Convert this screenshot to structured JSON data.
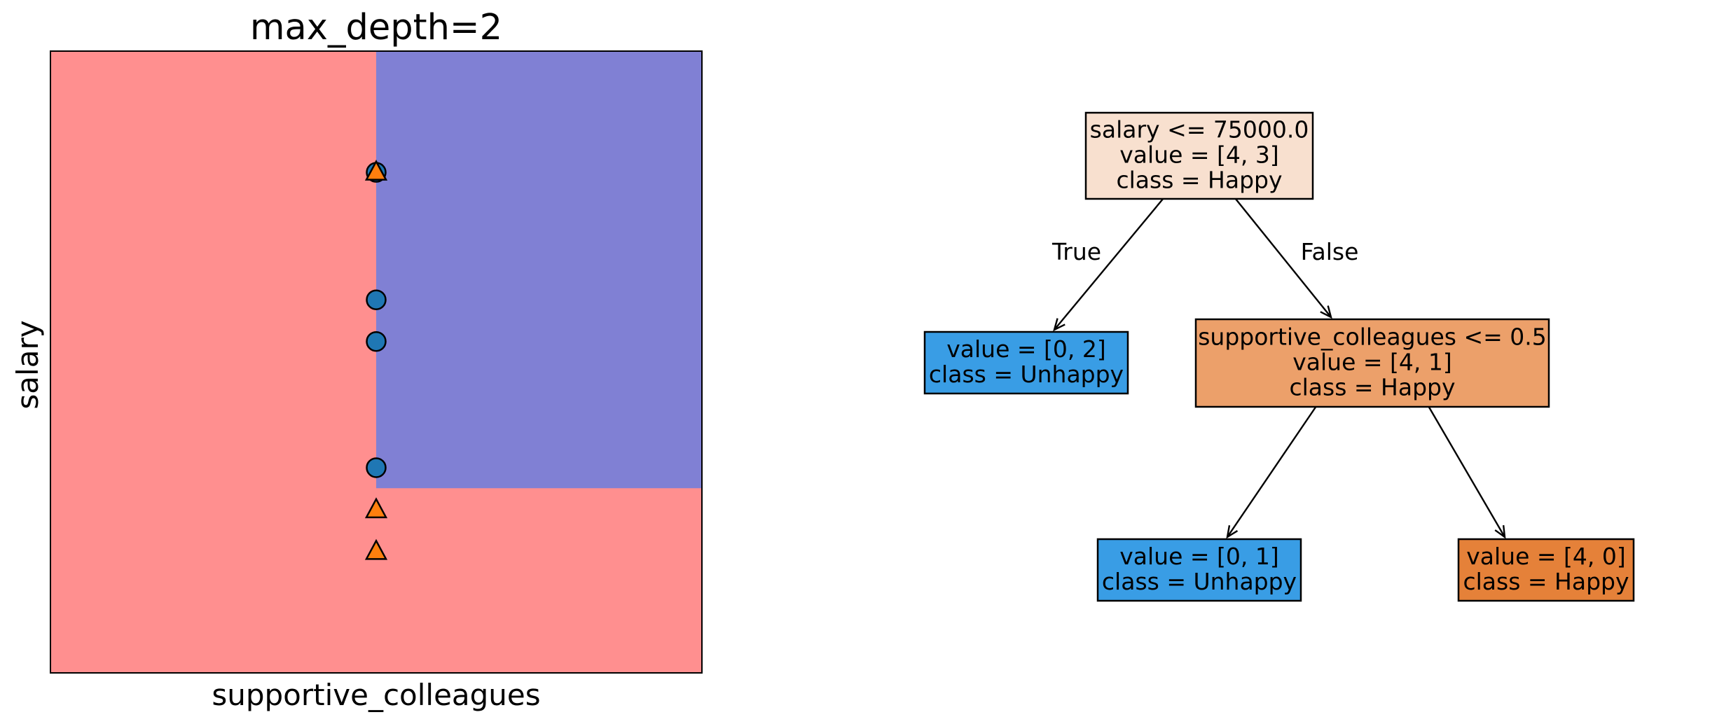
{
  "chart_data": [
    {
      "type": "scatter",
      "title": "max_depth=2",
      "xlabel": "supportive_colleagues",
      "ylabel": "salary",
      "grid": false,
      "xticks": "none",
      "yticks": "none",
      "xlim": [
        0,
        1
      ],
      "ylim": [
        0,
        1
      ],
      "colors": {
        "region_happy": "#ff8f8f",
        "region_unhappy": "#8080d4",
        "happy_marker": "#ff7f0e",
        "unhappy_marker": "#1f77b4"
      },
      "regions": [
        {
          "class": "Happy",
          "color": "#ff8f8f",
          "x": [
            0,
            1
          ],
          "y": [
            0,
            1
          ]
        },
        {
          "class": "Unhappy",
          "color": "#8080d4",
          "x": [
            0.5,
            1
          ],
          "y": [
            0.297,
            1
          ]
        }
      ],
      "series": [
        {
          "class": "Unhappy",
          "marker": "circle",
          "color": "#1f77b4",
          "points": [
            [
              0.5,
              0.805
            ],
            [
              0.5,
              0.6
            ],
            [
              0.5,
              0.533
            ],
            [
              0.5,
              0.33
            ]
          ]
        },
        {
          "class": "Happy",
          "marker": "triangle",
          "color": "#ff7f0e",
          "points": [
            [
              0.5,
              0.805
            ],
            [
              0.5,
              0.262
            ],
            [
              0.5,
              0.195
            ]
          ]
        }
      ]
    },
    {
      "type": "tree",
      "edge_labels": {
        "left": "True",
        "right": "False"
      },
      "nodes": [
        {
          "id": "root",
          "lines": [
            "salary <= 75000.0",
            "value = [4, 3]",
            "class = Happy"
          ],
          "fill": "#f8e0cf"
        },
        {
          "id": "left",
          "lines": [
            "value = [0, 2]",
            "class = Unhappy"
          ],
          "fill": "#399de5"
        },
        {
          "id": "right",
          "lines": [
            "supportive_colleagues <= 0.5",
            "value = [4, 1]",
            "class = Happy"
          ],
          "fill": "#eca06a"
        },
        {
          "id": "right_left",
          "lines": [
            "value = [0, 1]",
            "class = Unhappy"
          ],
          "fill": "#399de5"
        },
        {
          "id": "right_right",
          "lines": [
            "value = [4, 0]",
            "class = Happy"
          ],
          "fill": "#e58139"
        }
      ],
      "edges": [
        {
          "from": "root",
          "to": "left",
          "label": "True"
        },
        {
          "from": "root",
          "to": "right",
          "label": "False"
        },
        {
          "from": "right",
          "to": "right_left"
        },
        {
          "from": "right",
          "to": "right_right"
        }
      ]
    }
  ]
}
